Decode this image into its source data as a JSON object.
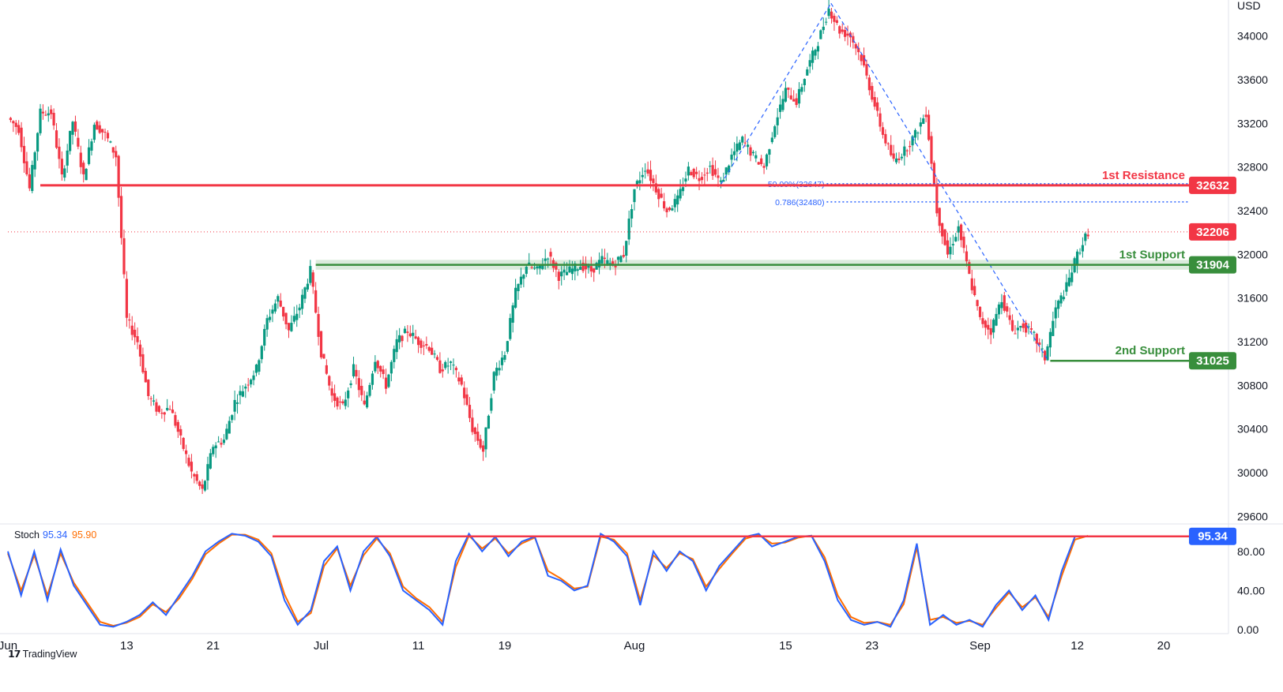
{
  "chart_data": {
    "type": "candlestick",
    "currency": "USD",
    "price_axis": {
      "ticks": [
        29600,
        30000,
        30400,
        30800,
        31200,
        31600,
        32000,
        32400,
        32800,
        33200,
        33600,
        34000
      ],
      "range": [
        29530,
        34330
      ]
    },
    "time_axis": {
      "ticks": [
        {
          "label": "Jun",
          "index": 0
        },
        {
          "label": "13",
          "index": 11
        },
        {
          "label": "21",
          "index": 19
        },
        {
          "label": "Jul",
          "index": 29
        },
        {
          "label": "11",
          "index": 38
        },
        {
          "label": "19",
          "index": 46
        },
        {
          "label": "Aug",
          "index": 58
        },
        {
          "label": "15",
          "index": 72
        },
        {
          "label": "23",
          "index": 80
        },
        {
          "label": "Sep",
          "index": 90
        },
        {
          "label": "12",
          "index": 99
        },
        {
          "label": "20",
          "index": 107
        }
      ],
      "range": [
        0,
        113
      ]
    },
    "price_path": [
      [
        0,
        33250
      ],
      [
        1,
        33150
      ],
      [
        2,
        32600
      ],
      [
        3,
        33300
      ],
      [
        4,
        33300
      ],
      [
        5,
        32700
      ],
      [
        6,
        33220
      ],
      [
        7,
        32700
      ],
      [
        8,
        33200
      ],
      [
        9,
        33100
      ],
      [
        10,
        32900
      ],
      [
        11,
        31400
      ],
      [
        12,
        31200
      ],
      [
        13,
        30700
      ],
      [
        14,
        30550
      ],
      [
        15,
        30600
      ],
      [
        16,
        30300
      ],
      [
        17,
        30000
      ],
      [
        18,
        29830
      ],
      [
        19,
        30250
      ],
      [
        20,
        30300
      ],
      [
        21,
        30650
      ],
      [
        22,
        30800
      ],
      [
        23,
        30950
      ],
      [
        24,
        31400
      ],
      [
        25,
        31600
      ],
      [
        26,
        31300
      ],
      [
        27,
        31520
      ],
      [
        28,
        31850
      ],
      [
        29,
        31100
      ],
      [
        30,
        30700
      ],
      [
        31,
        30600
      ],
      [
        32,
        30950
      ],
      [
        33,
        30600
      ],
      [
        34,
        31050
      ],
      [
        35,
        30800
      ],
      [
        36,
        31200
      ],
      [
        37,
        31300
      ],
      [
        38,
        31200
      ],
      [
        39,
        31150
      ],
      [
        40,
        30950
      ],
      [
        41,
        31000
      ],
      [
        42,
        30800
      ],
      [
        43,
        30400
      ],
      [
        44,
        30200
      ],
      [
        45,
        30900
      ],
      [
        46,
        31100
      ],
      [
        47,
        31650
      ],
      [
        48,
        31900
      ],
      [
        49,
        31850
      ],
      [
        50,
        32000
      ],
      [
        51,
        31800
      ],
      [
        52,
        31850
      ],
      [
        53,
        31900
      ],
      [
        54,
        31850
      ],
      [
        55,
        31950
      ],
      [
        56,
        31900
      ],
      [
        57,
        32000
      ],
      [
        58,
        32600
      ],
      [
        59,
        32800
      ],
      [
        60,
        32600
      ],
      [
        61,
        32400
      ],
      [
        62,
        32500
      ],
      [
        63,
        32780
      ],
      [
        64,
        32700
      ],
      [
        65,
        32800
      ],
      [
        66,
        32650
      ],
      [
        67,
        32900
      ],
      [
        68,
        33050
      ],
      [
        69,
        32900
      ],
      [
        70,
        32800
      ],
      [
        71,
        33200
      ],
      [
        72,
        33500
      ],
      [
        73,
        33400
      ],
      [
        74,
        33700
      ],
      [
        75,
        33950
      ],
      [
        76,
        34250
      ],
      [
        77,
        34050
      ],
      [
        78,
        34000
      ],
      [
        79,
        33800
      ],
      [
        80,
        33450
      ],
      [
        81,
        33100
      ],
      [
        82,
        32850
      ],
      [
        83,
        32950
      ],
      [
        84,
        33100
      ],
      [
        85,
        33300
      ],
      [
        86,
        32400
      ],
      [
        87,
        32000
      ],
      [
        88,
        32250
      ],
      [
        89,
        31800
      ],
      [
        90,
        31400
      ],
      [
        91,
        31300
      ],
      [
        92,
        31600
      ],
      [
        93,
        31300
      ],
      [
        94,
        31350
      ],
      [
        95,
        31250
      ],
      [
        96,
        31050
      ],
      [
        97,
        31500
      ],
      [
        98,
        31700
      ],
      [
        99,
        32000
      ],
      [
        100,
        32206
      ]
    ],
    "levels": [
      {
        "name": "1st Resistance",
        "value": 32632,
        "tag": "32632",
        "color": "#f23645"
      },
      {
        "name": "1st Support",
        "value": 31904,
        "tag": "31904",
        "color": "#388e3c"
      },
      {
        "name": "2nd Support",
        "value": 31025,
        "tag": "31025",
        "color": "#388e3c"
      }
    ],
    "current_price": {
      "value": 32206,
      "tag": "32206",
      "color": "#f23645"
    },
    "fibonacci": [
      {
        "label": "50.00%(32647)",
        "value": 32647
      },
      {
        "label": "0.786(32480)",
        "value": 32480
      }
    ],
    "stochastic": {
      "label": "Stoch",
      "k_value": "95.34",
      "d_value": "95.90",
      "k_color": "#2962ff",
      "d_color": "#ff6d00",
      "ticks": [
        "80.00",
        "40.00",
        "0.00"
      ],
      "range": [
        -4,
        108
      ],
      "overbought_line": 95.34,
      "tag": "95.34",
      "k_path": [
        [
          0,
          80
        ],
        [
          1,
          35
        ],
        [
          2,
          80
        ],
        [
          3,
          30
        ],
        [
          4,
          82
        ],
        [
          5,
          45
        ],
        [
          6,
          25
        ],
        [
          7,
          5
        ],
        [
          8,
          3
        ],
        [
          9,
          8
        ],
        [
          10,
          15
        ],
        [
          11,
          28
        ],
        [
          12,
          15
        ],
        [
          13,
          35
        ],
        [
          14,
          55
        ],
        [
          15,
          80
        ],
        [
          16,
          90
        ],
        [
          17,
          98
        ],
        [
          18,
          96
        ],
        [
          19,
          90
        ],
        [
          20,
          75
        ],
        [
          21,
          30
        ],
        [
          22,
          5
        ],
        [
          23,
          20
        ],
        [
          24,
          70
        ],
        [
          25,
          85
        ],
        [
          26,
          40
        ],
        [
          27,
          80
        ],
        [
          28,
          95
        ],
        [
          29,
          75
        ],
        [
          30,
          40
        ],
        [
          31,
          30
        ],
        [
          32,
          20
        ],
        [
          33,
          5
        ],
        [
          34,
          70
        ],
        [
          35,
          98
        ],
        [
          36,
          80
        ],
        [
          37,
          95
        ],
        [
          38,
          75
        ],
        [
          39,
          90
        ],
        [
          40,
          95
        ],
        [
          41,
          55
        ],
        [
          42,
          50
        ],
        [
          43,
          40
        ],
        [
          44,
          45
        ],
        [
          45,
          98
        ],
        [
          46,
          90
        ],
        [
          47,
          75
        ],
        [
          48,
          25
        ],
        [
          49,
          80
        ],
        [
          50,
          60
        ],
        [
          51,
          80
        ],
        [
          52,
          70
        ],
        [
          53,
          40
        ],
        [
          54,
          65
        ],
        [
          55,
          80
        ],
        [
          56,
          95
        ],
        [
          57,
          98
        ],
        [
          58,
          85
        ],
        [
          59,
          90
        ],
        [
          60,
          95
        ],
        [
          61,
          96
        ],
        [
          62,
          70
        ],
        [
          63,
          30
        ],
        [
          64,
          10
        ],
        [
          65,
          5
        ],
        [
          66,
          8
        ],
        [
          67,
          3
        ],
        [
          68,
          30
        ],
        [
          69,
          88
        ],
        [
          70,
          5
        ],
        [
          71,
          15
        ],
        [
          72,
          5
        ],
        [
          73,
          10
        ],
        [
          74,
          3
        ],
        [
          75,
          25
        ],
        [
          76,
          40
        ],
        [
          77,
          20
        ],
        [
          78,
          35
        ],
        [
          79,
          10
        ],
        [
          80,
          60
        ],
        [
          81,
          95
        ],
        [
          82,
          95.34
        ]
      ],
      "d_path": [
        [
          0,
          78
        ],
        [
          1,
          40
        ],
        [
          2,
          76
        ],
        [
          3,
          35
        ],
        [
          4,
          78
        ],
        [
          5,
          48
        ],
        [
          6,
          28
        ],
        [
          7,
          8
        ],
        [
          8,
          4
        ],
        [
          9,
          7
        ],
        [
          10,
          13
        ],
        [
          11,
          26
        ],
        [
          12,
          18
        ],
        [
          13,
          32
        ],
        [
          14,
          52
        ],
        [
          15,
          77
        ],
        [
          16,
          88
        ],
        [
          17,
          97
        ],
        [
          18,
          97
        ],
        [
          19,
          92
        ],
        [
          20,
          78
        ],
        [
          21,
          36
        ],
        [
          22,
          8
        ],
        [
          23,
          17
        ],
        [
          24,
          65
        ],
        [
          25,
          83
        ],
        [
          26,
          45
        ],
        [
          27,
          76
        ],
        [
          28,
          93
        ],
        [
          29,
          78
        ],
        [
          30,
          44
        ],
        [
          31,
          32
        ],
        [
          32,
          23
        ],
        [
          33,
          8
        ],
        [
          34,
          64
        ],
        [
          35,
          96
        ],
        [
          36,
          83
        ],
        [
          37,
          93
        ],
        [
          38,
          78
        ],
        [
          39,
          88
        ],
        [
          40,
          94
        ],
        [
          41,
          60
        ],
        [
          42,
          52
        ],
        [
          43,
          42
        ],
        [
          44,
          44
        ],
        [
          45,
          95
        ],
        [
          46,
          92
        ],
        [
          47,
          78
        ],
        [
          48,
          30
        ],
        [
          49,
          76
        ],
        [
          50,
          63
        ],
        [
          51,
          78
        ],
        [
          52,
          72
        ],
        [
          53,
          44
        ],
        [
          54,
          62
        ],
        [
          55,
          78
        ],
        [
          56,
          93
        ],
        [
          57,
          97
        ],
        [
          58,
          88
        ],
        [
          59,
          89
        ],
        [
          60,
          94
        ],
        [
          61,
          96
        ],
        [
          62,
          74
        ],
        [
          63,
          35
        ],
        [
          64,
          13
        ],
        [
          65,
          7
        ],
        [
          66,
          8
        ],
        [
          67,
          5
        ],
        [
          68,
          26
        ],
        [
          69,
          84
        ],
        [
          70,
          10
        ],
        [
          71,
          13
        ],
        [
          72,
          7
        ],
        [
          73,
          9
        ],
        [
          74,
          5
        ],
        [
          75,
          22
        ],
        [
          76,
          38
        ],
        [
          77,
          23
        ],
        [
          78,
          33
        ],
        [
          79,
          13
        ],
        [
          80,
          55
        ],
        [
          81,
          92
        ],
        [
          82,
          95.9
        ]
      ]
    }
  },
  "footer": {
    "brand": "TradingView"
  }
}
